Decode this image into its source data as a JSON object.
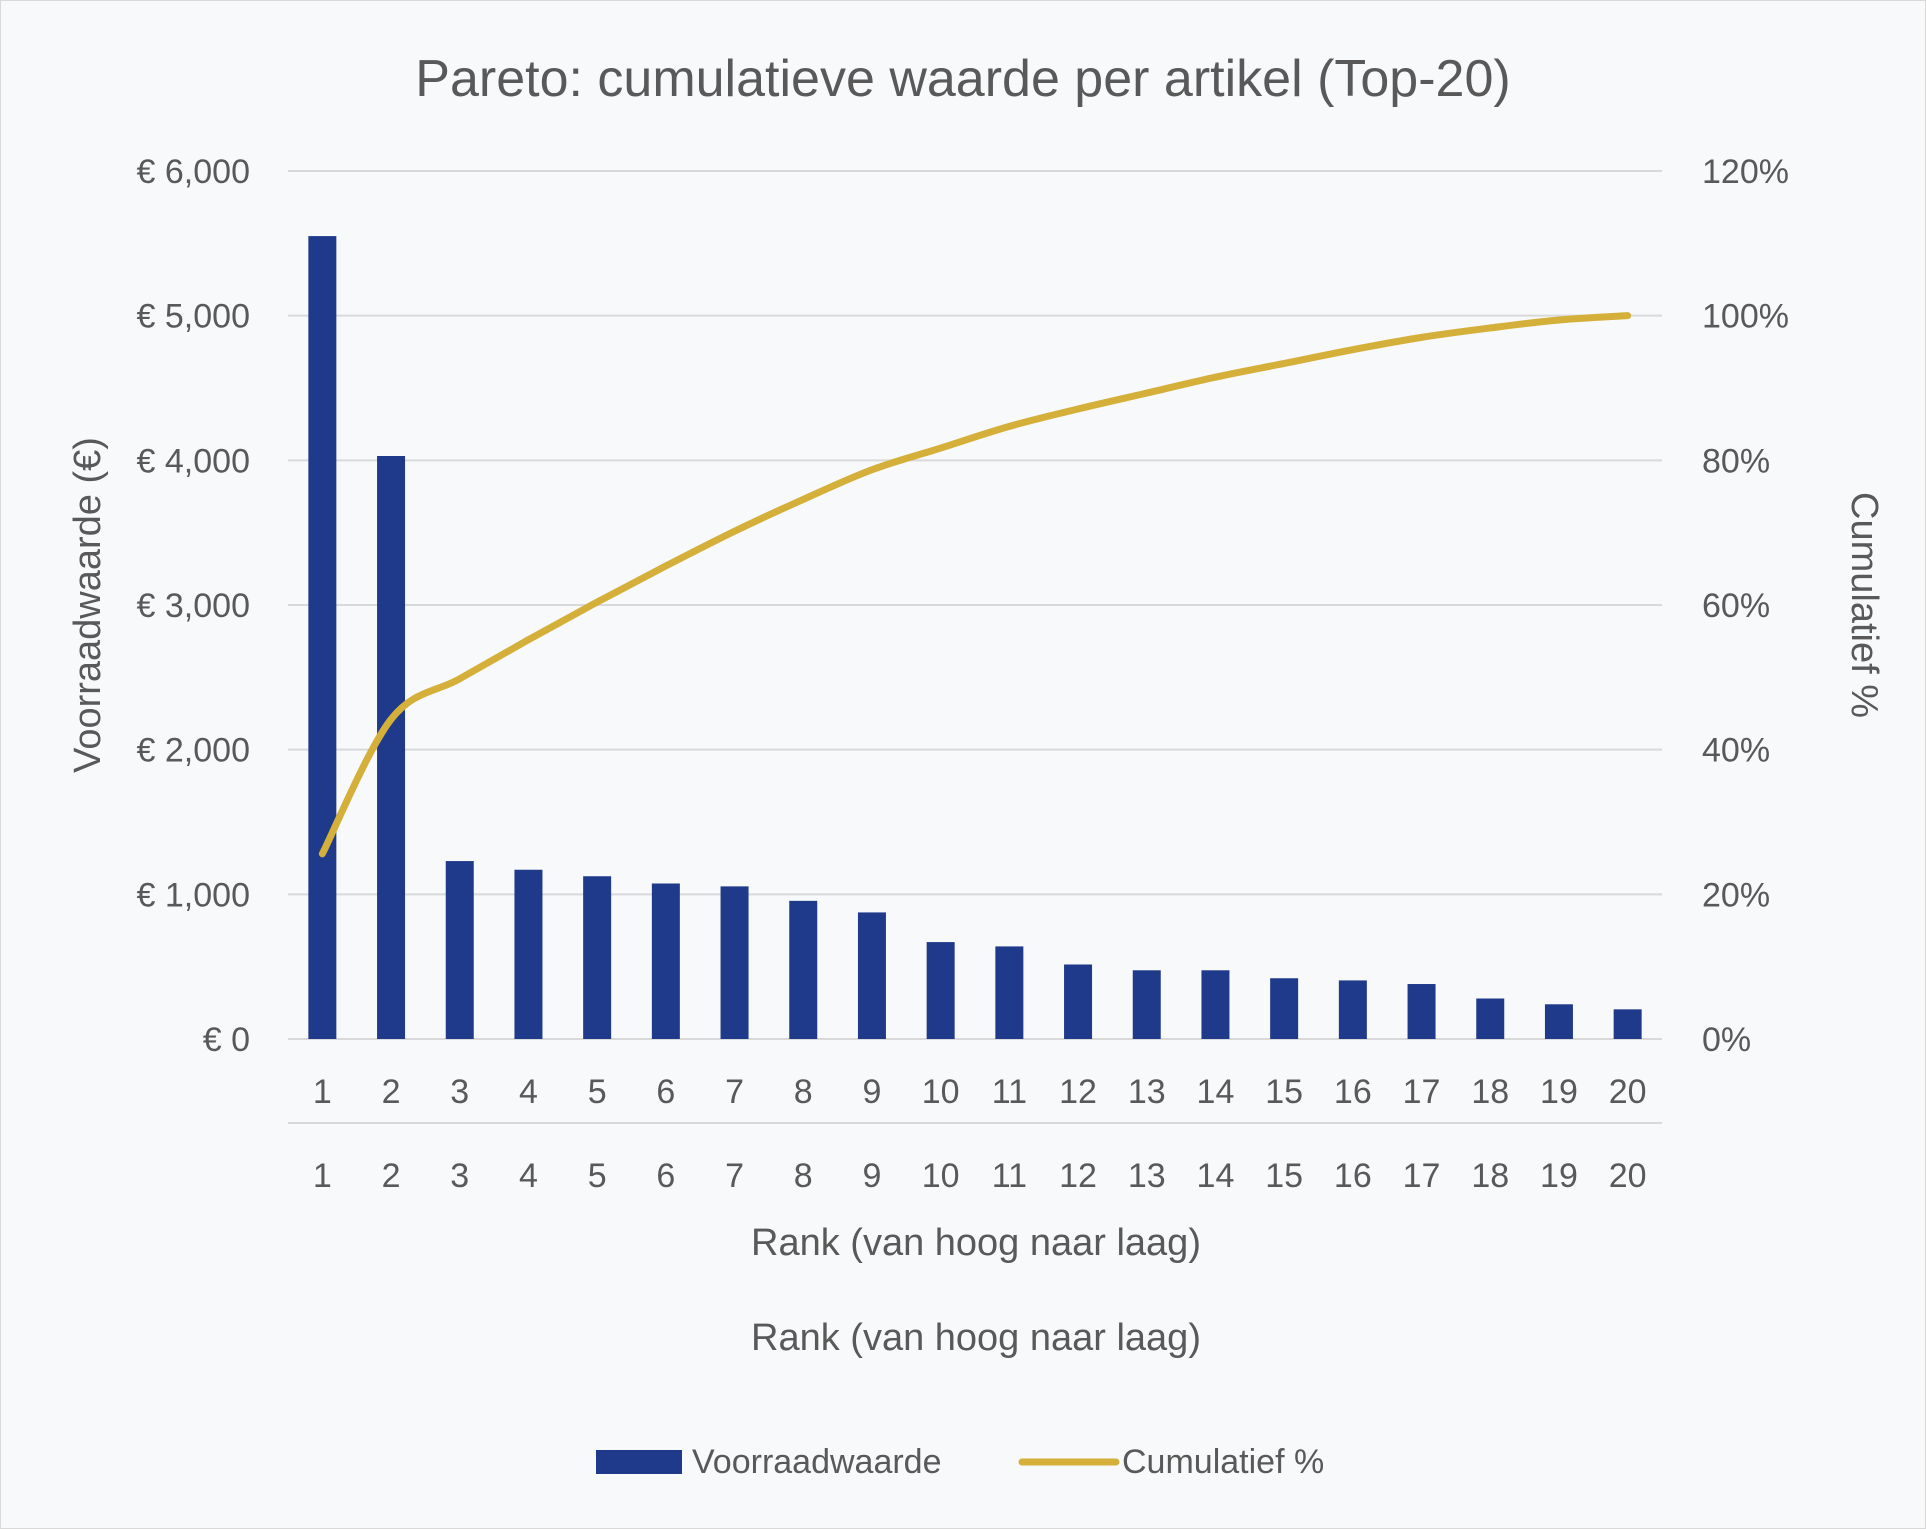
{
  "chart_data": {
    "type": "bar+line",
    "title": "Pareto: cumulatieve waarde per artikel (Top-20)",
    "categories": [
      "1",
      "2",
      "3",
      "4",
      "5",
      "6",
      "7",
      "8",
      "9",
      "10",
      "11",
      "12",
      "13",
      "14",
      "15",
      "16",
      "17",
      "18",
      "19",
      "20"
    ],
    "series": [
      {
        "name": "Voorraadwaarde",
        "type": "bar",
        "axis": "left",
        "color": "#1f3a8a",
        "values": [
          5550,
          4030,
          1230,
          1170,
          1125,
          1075,
          1055,
          955,
          875,
          670,
          640,
          515,
          475,
          475,
          420,
          405,
          380,
          280,
          240,
          205
        ]
      },
      {
        "name": "Cumulatief %",
        "type": "line",
        "axis": "right",
        "color": "#d4b03a",
        "values": [
          25.6,
          44.2,
          49.8,
          55.2,
          60.4,
          65.4,
          70.2,
          74.6,
          78.7,
          81.7,
          84.7,
          87.1,
          89.3,
          91.5,
          93.4,
          95.3,
          97.0,
          98.3,
          99.4,
          100.0
        ]
      }
    ],
    "y_left": {
      "label": "Voorraadwaarde (€)",
      "min": 0,
      "max": 6000,
      "step": 1000,
      "ticks": [
        "€ 0",
        "€ 1,000",
        "€ 2,000",
        "€ 3,000",
        "€ 4,000",
        "€ 5,000",
        "€ 6,000"
      ]
    },
    "y_right": {
      "label": "Cumulatief %",
      "min": 0,
      "max": 120,
      "step": 20,
      "ticks": [
        "0%",
        "20%",
        "40%",
        "60%",
        "80%",
        "100%",
        "120%"
      ]
    },
    "xlabel_primary": "Rank (van hoog naar laag)",
    "xlabel_secondary": "Rank (van hoog naar laag)",
    "grid": true,
    "gridColor": "#d9d9d9",
    "legend": {
      "position": "bottom",
      "items": [
        {
          "label": "Voorraadwaarde",
          "swatch": "bar",
          "color": "#1f3a8a"
        },
        {
          "label": "Cumulatief %",
          "swatch": "line",
          "color": "#d4b03a"
        }
      ]
    }
  }
}
